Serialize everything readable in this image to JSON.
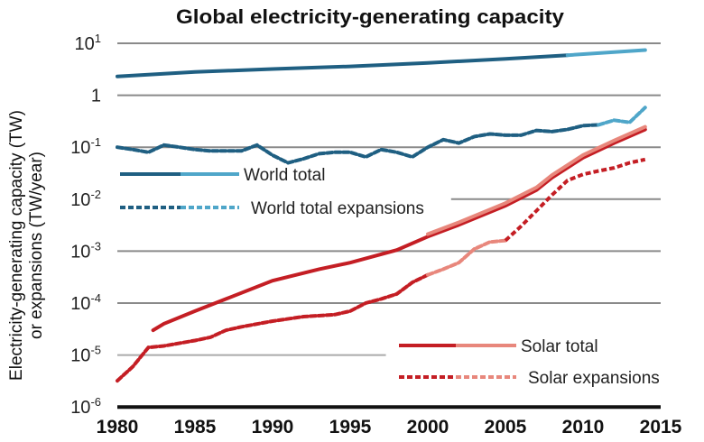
{
  "chart_data": {
    "type": "line",
    "title": "Global electricity-generating capacity",
    "ylabel": [
      "Electricity-generating capacity (TW)",
      "or expansions (TW/year)"
    ],
    "xlabel": "",
    "x_ticks": [
      "1980",
      "1985",
      "1990",
      "1995",
      "2000",
      "2005",
      "2010",
      "2015"
    ],
    "xlim": [
      1980,
      2015
    ],
    "y_scale": "log",
    "ylim": [
      1e-06,
      10
    ],
    "y_ticks": [
      {
        "value": 10,
        "base": "10",
        "exp": "1"
      },
      {
        "value": 1,
        "base": "1",
        "exp": ""
      },
      {
        "value": 0.1,
        "base": "10",
        "exp": "-1"
      },
      {
        "value": 0.01,
        "base": "10",
        "exp": "-2"
      },
      {
        "value": 0.001,
        "base": "10",
        "exp": "-3"
      },
      {
        "value": 0.0001,
        "base": "10",
        "exp": "-4"
      },
      {
        "value": 1e-05,
        "base": "10",
        "exp": "-5"
      },
      {
        "value": 1e-06,
        "base": "10",
        "exp": "-6"
      }
    ],
    "grid": true,
    "series": [
      {
        "name": "World total",
        "style": "solid",
        "color": "#1f5f82",
        "light_color": "#4fa6c9",
        "light_range": [
          2009,
          2014
        ],
        "x": [
          1980,
          1985,
          1990,
          1995,
          2000,
          2005,
          2009,
          2014
        ],
        "y": [
          2.3,
          2.8,
          3.2,
          3.6,
          4.2,
          5.0,
          5.9,
          7.4
        ]
      },
      {
        "name": "World total expansions",
        "style": "dashed",
        "color": "#1f5f82",
        "light_color": "#4fa6c9",
        "light_range": [
          2011,
          2014
        ],
        "x": [
          1980,
          1981,
          1982,
          1983,
          1984,
          1985,
          1986,
          1987,
          1988,
          1989,
          1990,
          1991,
          1992,
          1993,
          1994,
          1995,
          1996,
          1997,
          1998,
          1999,
          2000,
          2001,
          2002,
          2003,
          2004,
          2005,
          2006,
          2007,
          2008,
          2009,
          2010,
          2011,
          2012,
          2013,
          2014
        ],
        "y": [
          0.1,
          0.09,
          0.08,
          0.11,
          0.1,
          0.09,
          0.085,
          0.085,
          0.085,
          0.11,
          0.07,
          0.05,
          0.06,
          0.075,
          0.08,
          0.08,
          0.065,
          0.09,
          0.08,
          0.065,
          0.1,
          0.14,
          0.12,
          0.16,
          0.18,
          0.17,
          0.17,
          0.21,
          0.2,
          0.22,
          0.26,
          0.27,
          0.33,
          0.3,
          0.58
        ]
      },
      {
        "name": "Solar total",
        "style": "solid",
        "color": "#c41e24",
        "light_color": "#e8877c",
        "light_range": [
          1999,
          2014
        ],
        "x": [
          1982.3,
          1983,
          1985,
          1987,
          1990,
          1993,
          1995,
          1998,
          2000,
          2002,
          2005,
          2007,
          2008,
          2010,
          2012,
          2014
        ],
        "y": [
          3e-05,
          4e-05,
          7e-05,
          0.00012,
          0.00027,
          0.00045,
          0.0006,
          0.00105,
          0.0019,
          0.0032,
          0.0075,
          0.015,
          0.026,
          0.063,
          0.12,
          0.22
        ]
      },
      {
        "name": "Solar expansions",
        "style": "dashed",
        "color": "#c41e24",
        "light_color": "#e8877c",
        "light_range": [
          2000,
          2005
        ],
        "x": [
          1980,
          1981,
          1982,
          1983,
          1985,
          1986,
          1987,
          1988,
          1990,
          1992,
          1994,
          1995,
          1996,
          1997,
          1998,
          1999,
          2000,
          2001,
          2002,
          2003,
          2004,
          2005,
          2006,
          2007,
          2008,
          2009,
          2010,
          2011,
          2012,
          2013,
          2014
        ],
        "y": [
          3.2e-06,
          6e-06,
          1.4e-05,
          1.5e-05,
          1.9e-05,
          2.2e-05,
          3e-05,
          3.5e-05,
          4.5e-05,
          5.5e-05,
          6e-05,
          7e-05,
          0.0001,
          0.00012,
          0.00015,
          0.00025,
          0.00035,
          0.00045,
          0.0006,
          0.0011,
          0.0015,
          0.0016,
          0.003,
          0.006,
          0.012,
          0.023,
          0.03,
          0.035,
          0.04,
          0.05,
          0.058
        ]
      }
    ],
    "legend": [
      {
        "label": "World total",
        "series": 0
      },
      {
        "label": "World total expansions",
        "series": 1
      },
      {
        "label": "Solar total",
        "series": 2
      },
      {
        "label": "Solar expansions",
        "series": 3
      }
    ]
  }
}
